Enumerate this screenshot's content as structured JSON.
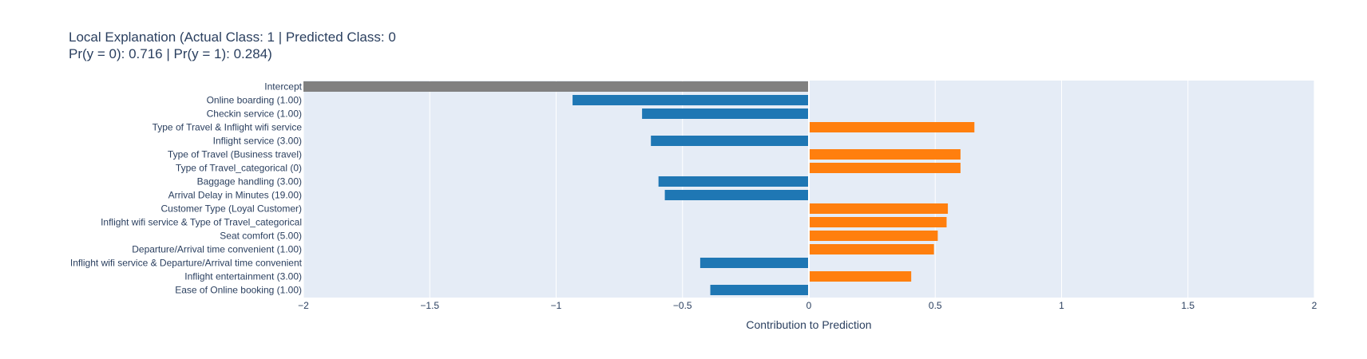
{
  "chart_data": {
    "type": "bar",
    "orientation": "horizontal",
    "title": "Local Explanation (Actual Class: 1 | Predicted Class: 0",
    "subtitle": "Pr(y = 0): 0.716 | Pr(y = 1): 0.284)",
    "xlabel": "Contribution to Prediction",
    "ylabel": "",
    "xlim": [
      -2,
      2
    ],
    "xticks": [
      -2,
      -1.5,
      -1,
      -0.5,
      0,
      0.5,
      1,
      1.5,
      2
    ],
    "xtick_labels": [
      "−2",
      "−1.5",
      "−1",
      "−0.5",
      "0",
      "0.5",
      "1",
      "1.5",
      "2"
    ],
    "grid": true,
    "legend": "none",
    "colors": {
      "intercept": "#808080",
      "negative": "#1f77b4",
      "positive": "#ff7f0e",
      "plot_bg": "#e5ecf6",
      "grid": "#ffffff",
      "text": "#2a3f5f"
    },
    "categories": [
      "Intercept",
      "Online boarding (1.00)",
      "Checkin service (1.00)",
      "Type of Travel & Inflight wifi service",
      "Inflight service (3.00)",
      "Type of Travel (Business travel)",
      "Type of Travel_categorical (0)",
      "Baggage handling (3.00)",
      "Arrival Delay in Minutes (19.00)",
      "Customer Type (Loyal Customer)",
      "Inflight wifi service & Type of Travel_categorical",
      "Seat comfort (5.00)",
      "Departure/Arrival time convenient (1.00)",
      "Inflight wifi service & Departure/Arrival time convenient",
      "Inflight entertainment (3.00)",
      "Ease of Online booking (1.00)"
    ],
    "values": [
      -2.0,
      -0.935,
      -0.66,
      0.655,
      -0.625,
      0.6,
      0.6,
      -0.595,
      -0.57,
      0.55,
      0.545,
      0.51,
      0.495,
      -0.43,
      0.405,
      -0.39
    ]
  }
}
